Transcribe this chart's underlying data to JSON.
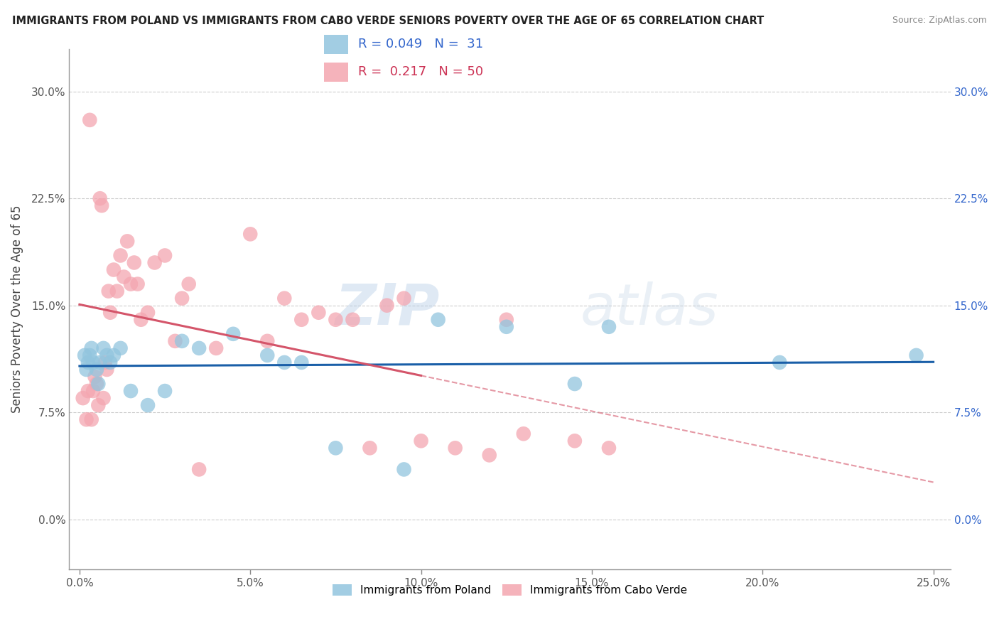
{
  "title": "IMMIGRANTS FROM POLAND VS IMMIGRANTS FROM CABO VERDE SENIORS POVERTY OVER THE AGE OF 65 CORRELATION CHART",
  "source": "Source: ZipAtlas.com",
  "ylabel": "Seniors Poverty Over the Age of 65",
  "xlim": [
    -0.3,
    25.5
  ],
  "ylim": [
    -3.5,
    33.0
  ],
  "xticks": [
    0.0,
    5.0,
    10.0,
    15.0,
    20.0,
    25.0
  ],
  "xticklabels": [
    "0.0%",
    "5.0%",
    "10.0%",
    "15.0%",
    "20.0%",
    "25.0%"
  ],
  "yticks": [
    0.0,
    7.5,
    15.0,
    22.5,
    30.0
  ],
  "yticklabels": [
    "0.0%",
    "7.5%",
    "15.0%",
    "22.5%",
    "30.0%"
  ],
  "legend_r_poland": "0.049",
  "legend_n_poland": "31",
  "legend_r_cabo": "0.217",
  "legend_n_cabo": "50",
  "poland_color": "#92c5de",
  "cabo_color": "#f4a6b0",
  "poland_line_color": "#1a5fa8",
  "cabo_line_color": "#d4556a",
  "watermark_zip": "ZIP",
  "watermark_atlas": "atlas",
  "poland_x": [
    0.15,
    0.2,
    0.25,
    0.3,
    0.35,
    0.4,
    0.5,
    0.55,
    0.6,
    0.7,
    0.8,
    0.9,
    1.0,
    1.2,
    1.5,
    2.0,
    2.5,
    3.0,
    3.5,
    4.5,
    5.5,
    6.0,
    6.5,
    7.5,
    9.5,
    10.5,
    12.5,
    14.5,
    15.5,
    20.5,
    24.5
  ],
  "poland_y": [
    11.5,
    10.5,
    11.0,
    11.5,
    12.0,
    11.0,
    10.5,
    9.5,
    11.0,
    12.0,
    11.5,
    11.0,
    11.5,
    12.0,
    9.0,
    8.0,
    9.0,
    12.5,
    12.0,
    13.0,
    11.5,
    11.0,
    11.0,
    5.0,
    3.5,
    14.0,
    13.5,
    9.5,
    13.5,
    11.0,
    11.5
  ],
  "cabo_x": [
    0.1,
    0.2,
    0.25,
    0.3,
    0.35,
    0.4,
    0.45,
    0.5,
    0.55,
    0.6,
    0.65,
    0.7,
    0.75,
    0.8,
    0.85,
    0.9,
    1.0,
    1.1,
    1.2,
    1.3,
    1.4,
    1.5,
    1.6,
    1.7,
    1.8,
    2.0,
    2.2,
    2.5,
    2.8,
    3.0,
    3.2,
    3.5,
    4.0,
    5.0,
    5.5,
    6.0,
    6.5,
    7.0,
    7.5,
    8.0,
    8.5,
    9.0,
    9.5,
    10.0,
    11.0,
    12.0,
    12.5,
    13.0,
    14.5,
    15.5
  ],
  "cabo_y": [
    8.5,
    7.0,
    9.0,
    28.0,
    7.0,
    9.0,
    10.0,
    9.5,
    8.0,
    22.5,
    22.0,
    8.5,
    11.0,
    10.5,
    16.0,
    14.5,
    17.5,
    16.0,
    18.5,
    17.0,
    19.5,
    16.5,
    18.0,
    16.5,
    14.0,
    14.5,
    18.0,
    18.5,
    12.5,
    15.5,
    16.5,
    3.5,
    12.0,
    20.0,
    12.5,
    15.5,
    14.0,
    14.5,
    14.0,
    14.0,
    5.0,
    15.0,
    15.5,
    5.5,
    5.0,
    4.5,
    14.0,
    6.0,
    5.5,
    5.0
  ],
  "cabo_line_solid_end": 10.0,
  "cabo_line_x_end": 25.0,
  "poland_line_y_start": 11.2,
  "poland_line_y_end": 11.8
}
